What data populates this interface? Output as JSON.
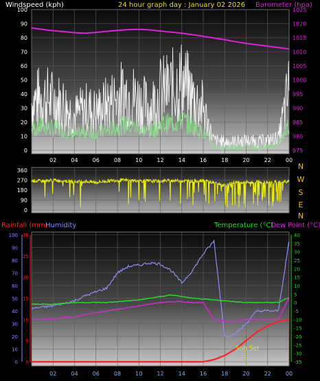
{
  "header": {
    "left_label": "Windspeed (kph)",
    "center_title": "24 hour graph day : January 02 2026",
    "right_label": "Barometer (hpa)"
  },
  "colors": {
    "wind_gust": "#f4f4f4",
    "wind_avg": "#8ce08c",
    "barometer": "#e21ee2",
    "direction": "#f0f000",
    "rain": "#ff2020",
    "humidity": "#8c8cff",
    "temperature": "#20e020",
    "dewpoint": "#e020e0",
    "time_axis": "#7eb3ff",
    "compass": "#f0c000"
  },
  "x_ticks": [
    "02",
    "04",
    "06",
    "08",
    "10",
    "12",
    "14",
    "16",
    "18",
    "20",
    "22",
    "00"
  ],
  "wind_chart": {
    "y_ticks_left": [
      "0",
      "10",
      "20",
      "30",
      "40",
      "50",
      "60",
      "70",
      "80",
      "90",
      "100"
    ],
    "y_ticks_right": [
      "975",
      "980",
      "985",
      "990",
      "995",
      "1000",
      "1005",
      "1010",
      "1015",
      "1020",
      "1025"
    ],
    "ylim_wind": [
      0,
      100
    ],
    "ylim_baro": [
      975,
      1025
    ]
  },
  "direction_chart": {
    "y_ticks": [
      "0",
      "90",
      "180",
      "270",
      "360"
    ],
    "compass_labels": [
      "N",
      "W",
      "S",
      "E",
      "N"
    ],
    "ylim": [
      0,
      360
    ]
  },
  "climate_chart": {
    "rainfall_label": "Rainfall (mm)",
    "humidity_label": "Humidity",
    "temperature_label": "Temperature (°C)",
    "dewpoint_label": "Dew Point (°C)",
    "rain_ticks": [
      "0",
      "5",
      "10",
      "15",
      "20",
      "25",
      "30"
    ],
    "humidity_ticks": [
      "0",
      "10",
      "20",
      "30",
      "40",
      "50",
      "60",
      "70",
      "80",
      "90",
      "100"
    ],
    "temp_ticks": [
      "-35",
      "-30",
      "-25",
      "-20",
      "-15",
      "-10",
      "-5",
      "0",
      "5",
      "10",
      "15",
      "20",
      "25",
      "30",
      "35",
      "40"
    ],
    "sunset_label": "Sun Set"
  },
  "chart_data": [
    {
      "type": "line",
      "title": "24 hour graph day : January 02 2026",
      "x": [
        0,
        1,
        2,
        3,
        4,
        5,
        6,
        7,
        8,
        9,
        10,
        11,
        12,
        13,
        14,
        15,
        16,
        17,
        18,
        19,
        20,
        21,
        22,
        23,
        24
      ],
      "series": [
        {
          "name": "Windspeed (kph)",
          "values": [
            25,
            28,
            26,
            24,
            18,
            22,
            20,
            24,
            28,
            30,
            26,
            22,
            30,
            32,
            36,
            28,
            22,
            4,
            3,
            3,
            4,
            3,
            4,
            6,
            32
          ]
        },
        {
          "name": "Barometer (hpa)",
          "values": [
            1018.5,
            1018,
            1017.5,
            1017.2,
            1016.8,
            1016.6,
            1016.9,
            1017.3,
            1017.6,
            1017.9,
            1018,
            1017.8,
            1017.4,
            1017,
            1016.6,
            1016.1,
            1015.5,
            1014.9,
            1014.3,
            1013.6,
            1013,
            1012.5,
            1012,
            1011.5,
            1011
          ]
        }
      ],
      "ylim": [
        0,
        100
      ],
      "ylim_right": [
        975,
        1025
      ]
    },
    {
      "type": "line",
      "x": [
        0,
        1,
        2,
        3,
        4,
        5,
        6,
        7,
        8,
        9,
        10,
        11,
        12,
        13,
        14,
        15,
        16,
        17,
        18,
        19,
        20,
        21,
        22,
        23,
        24
      ],
      "series": [
        {
          "name": "Wind direction",
          "values": [
            265,
            262,
            270,
            265,
            255,
            260,
            250,
            262,
            270,
            268,
            265,
            262,
            262,
            268,
            265,
            262,
            270,
            245,
            225,
            250,
            250,
            255,
            250,
            250,
            260
          ]
        }
      ],
      "ylim": [
        0,
        360
      ]
    },
    {
      "type": "line",
      "x": [
        0,
        1,
        2,
        3,
        4,
        5,
        6,
        7,
        8,
        9,
        10,
        11,
        12,
        13,
        14,
        15,
        16,
        17,
        18,
        19,
        20,
        21,
        22,
        23,
        24
      ],
      "series": [
        {
          "name": "Humidity",
          "values": [
            42,
            43,
            44,
            46,
            48,
            52,
            55,
            58,
            70,
            75,
            76,
            78,
            77,
            72,
            62,
            72,
            85,
            95,
            20,
            22,
            30,
            40,
            40,
            40,
            95
          ]
        },
        {
          "name": "Temperature (°C)",
          "values": [
            -1,
            -1,
            -1,
            -0.5,
            0,
            0,
            0,
            0,
            0.5,
            1,
            1.5,
            2.5,
            3.5,
            4.5,
            3.5,
            2.5,
            2,
            1.5,
            1,
            0.5,
            0,
            0,
            0,
            0,
            3
          ]
        },
        {
          "name": "Dew Point (°C)",
          "values": [
            -10,
            -10,
            -9.5,
            -9,
            -8.5,
            -7,
            -6,
            -5,
            -4,
            -3,
            -2,
            -1,
            0,
            0.5,
            0.5,
            0,
            0,
            -10,
            -11,
            -11,
            -10,
            -10,
            -10,
            -10,
            3
          ]
        },
        {
          "name": "Rainfall (mm)",
          "values": [
            0,
            0,
            0,
            0,
            0,
            0,
            0,
            0,
            0,
            0,
            0,
            0,
            0,
            0,
            0,
            0,
            0,
            0.5,
            1.5,
            3,
            5,
            7,
            8.5,
            9.5,
            10
          ]
        }
      ],
      "ylim_humidity": [
        0,
        100
      ],
      "ylim_temperature": [
        -35,
        40
      ],
      "ylim_rain": [
        0,
        30
      ]
    }
  ]
}
